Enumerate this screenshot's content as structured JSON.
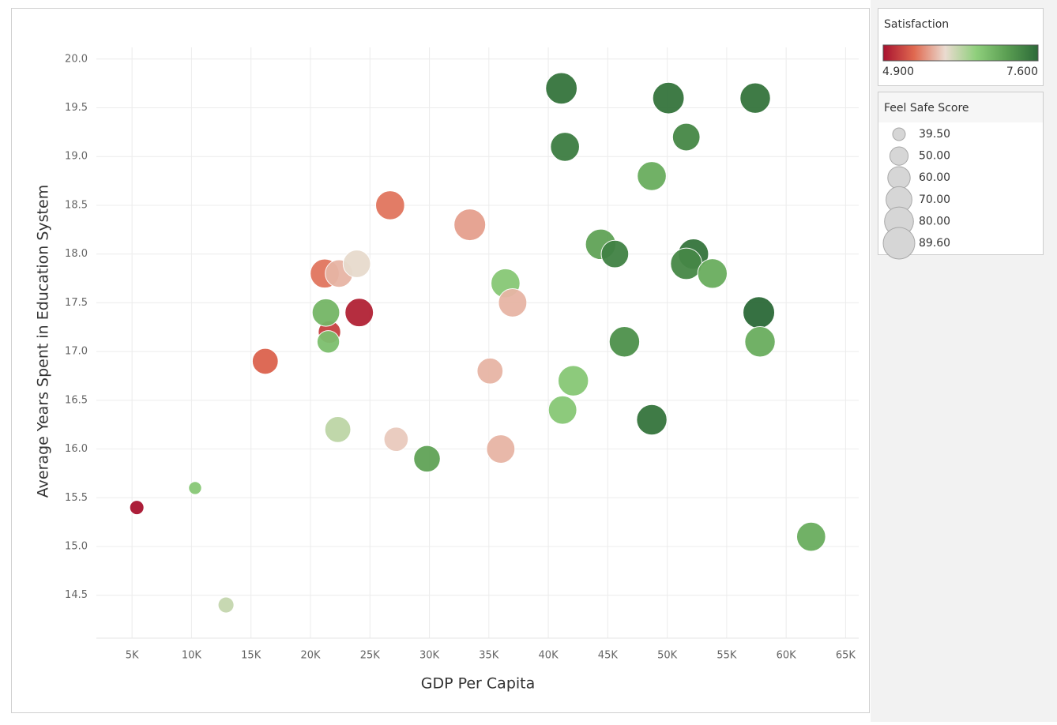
{
  "chart_data": {
    "type": "bubble",
    "x_label": "GDP Per Capita",
    "y_label": "Average Years Spent in Education System",
    "x": [
      5400,
      10300,
      12900,
      16200,
      21600,
      21500,
      21300,
      21200,
      22400,
      23900,
      24100,
      22300,
      26700,
      27200,
      29800,
      33400,
      35100,
      36000,
      36400,
      37000,
      41100,
      41400,
      41200,
      42100,
      44400,
      45600,
      46400,
      48700,
      48700,
      50100,
      51600,
      52200,
      51600,
      53800,
      57400,
      57700,
      57800,
      62100
    ],
    "values": [
      15.4,
      15.6,
      14.4,
      16.9,
      17.2,
      17.1,
      17.4,
      17.8,
      17.8,
      17.9,
      17.4,
      16.2,
      18.5,
      16.1,
      15.9,
      18.3,
      16.8,
      16.0,
      17.7,
      17.5,
      19.7,
      19.1,
      16.4,
      16.7,
      18.1,
      18.0,
      17.1,
      18.8,
      16.3,
      19.6,
      19.2,
      18.0,
      17.9,
      17.8,
      19.6,
      17.4,
      17.1,
      15.1
    ],
    "color_values": [
      4.9,
      6.6,
      6.2,
      5.4,
      5.2,
      6.7,
      6.8,
      5.5,
      5.8,
      6.0,
      5.0,
      6.25,
      5.5,
      5.9,
      7.0,
      5.7,
      5.8,
      5.8,
      6.6,
      5.8,
      7.5,
      7.4,
      6.6,
      6.6,
      7.0,
      7.35,
      7.2,
      6.9,
      7.5,
      7.5,
      7.3,
      7.5,
      7.3,
      6.9,
      7.5,
      7.6,
      6.9,
      6.9
    ],
    "sizes": [
      42,
      40,
      45,
      70,
      60,
      60,
      75,
      80,
      75,
      75,
      78,
      70,
      80,
      65,
      72,
      89.6,
      70,
      78,
      80,
      78,
      89,
      80,
      78,
      85,
      85,
      75,
      85,
      80,
      85,
      89,
      75,
      85,
      89,
      82,
      85,
      89.6,
      85,
      80
    ],
    "xlim": [
      2000,
      66100
    ],
    "ylim": [
      14.06,
      20.12
    ],
    "xticks": [
      {
        "value": 5000,
        "label": "5K"
      },
      {
        "value": 10000,
        "label": "10K"
      },
      {
        "value": 15000,
        "label": "15K"
      },
      {
        "value": 20000,
        "label": "20K"
      },
      {
        "value": 25000,
        "label": "25K"
      },
      {
        "value": 30000,
        "label": "30K"
      },
      {
        "value": 35000,
        "label": "35K"
      },
      {
        "value": 40000,
        "label": "40K"
      },
      {
        "value": 45000,
        "label": "45K"
      },
      {
        "value": 50000,
        "label": "50K"
      },
      {
        "value": 55000,
        "label": "55K"
      },
      {
        "value": 60000,
        "label": "60K"
      },
      {
        "value": 65000,
        "label": "65K"
      }
    ],
    "yticks": [
      14.5,
      {
        "value": 15,
        "label": "15.0"
      },
      15.5,
      {
        "value": 16,
        "label": "16.0"
      },
      16.5,
      {
        "value": 17,
        "label": "17.0"
      },
      17.5,
      {
        "value": 18,
        "label": "18.0"
      },
      18.5,
      {
        "value": 19,
        "label": "19.0"
      },
      19.5,
      {
        "value": 20,
        "label": "20.0"
      }
    ],
    "grid": true,
    "color_legend": {
      "title": "Satisfaction",
      "range": [
        {
          "value": 4.9,
          "label": "4.900"
        },
        {
          "value": 7.6,
          "label": "7.600"
        }
      ],
      "colors": [
        "#a8122f",
        "#e06950",
        "#eadbd0",
        "#8fcf7c",
        "#5a9e52",
        "#2c6a38"
      ]
    },
    "size_legend": {
      "title": "Feel Safe Score",
      "values": [
        {
          "value": 39.5,
          "label": "39.50"
        },
        {
          "value": 50,
          "label": "50.00"
        },
        {
          "value": 60,
          "label": "60.00"
        },
        {
          "value": 70,
          "label": "70.00"
        },
        {
          "value": 80,
          "label": "80.00"
        },
        {
          "value": 89.6,
          "label": "89.60"
        }
      ]
    }
  }
}
